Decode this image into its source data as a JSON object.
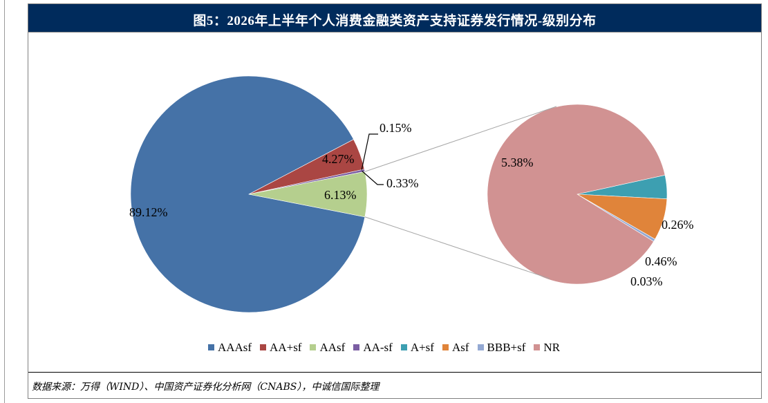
{
  "title": "图5：2026年上半年个人消费金融类资产支持证券发行情况-级别分布",
  "source_note": "数据来源：万得（WIND）、中国资产证券化分析网（CNABS），中诚信国际整理",
  "chart_data": {
    "type": "pie",
    "subtype": "pie-of-pie",
    "title": "",
    "legend_position": "bottom",
    "series": [
      {
        "name": "AAAsf",
        "value": 89.12,
        "label": "89.12%",
        "color": "#4572a7",
        "in_secondary": false
      },
      {
        "name": "AA+sf",
        "value": 4.27,
        "label": "4.27%",
        "color": "#aa4643",
        "in_secondary": false
      },
      {
        "name": "AAsf",
        "value": 6.13,
        "label": "6.13%",
        "color": "#b5cf8e",
        "in_secondary": false
      },
      {
        "name": "AA-sf",
        "value": 0.33,
        "label": "0.33%",
        "color": "#7b5ea3",
        "in_secondary": false
      },
      {
        "name": "A+sf",
        "value": 0.26,
        "label": "0.26%",
        "color": "#3d9fb1",
        "in_secondary": true
      },
      {
        "name": "Asf",
        "value": 0.46,
        "label": "0.46%",
        "color": "#e0843a",
        "in_secondary": true
      },
      {
        "name": "BBB+sf",
        "value": 0.03,
        "label": "0.03%",
        "color": "#94a9d3",
        "in_secondary": true
      },
      {
        "name": "NR",
        "value": 5.38,
        "label": "5.38%",
        "color": "#d19292",
        "in_secondary": true
      }
    ],
    "extra_labels": [
      {
        "text": "0.15%",
        "refers_to": "AA-sf boundary"
      }
    ],
    "secondary_group_label": "6.13%"
  }
}
